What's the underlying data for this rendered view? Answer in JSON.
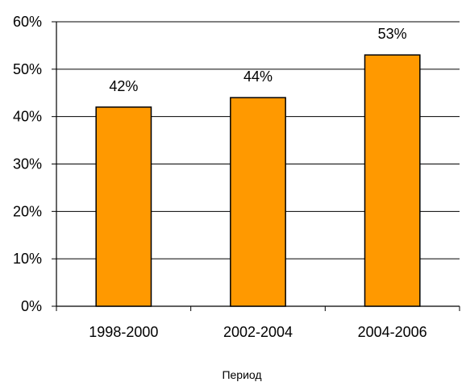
{
  "chart_data": {
    "type": "bar",
    "categories": [
      "1998-2000",
      "2002-2004",
      "2004-2006"
    ],
    "values": [
      42,
      44,
      53
    ],
    "data_labels": [
      "42%",
      "44%",
      "53%"
    ],
    "title": "",
    "xlabel": "Период",
    "ylabel": "",
    "ylim": [
      0,
      60
    ],
    "yticks": [
      0,
      10,
      20,
      30,
      40,
      50,
      60
    ],
    "ytick_labels": [
      "0%",
      "10%",
      "20%",
      "30%",
      "40%",
      "50%",
      "60%"
    ],
    "grid": true,
    "legend": "none",
    "bar_color": "#FF9900",
    "bar_border_color": "#000000",
    "grid_color": "#000000"
  }
}
